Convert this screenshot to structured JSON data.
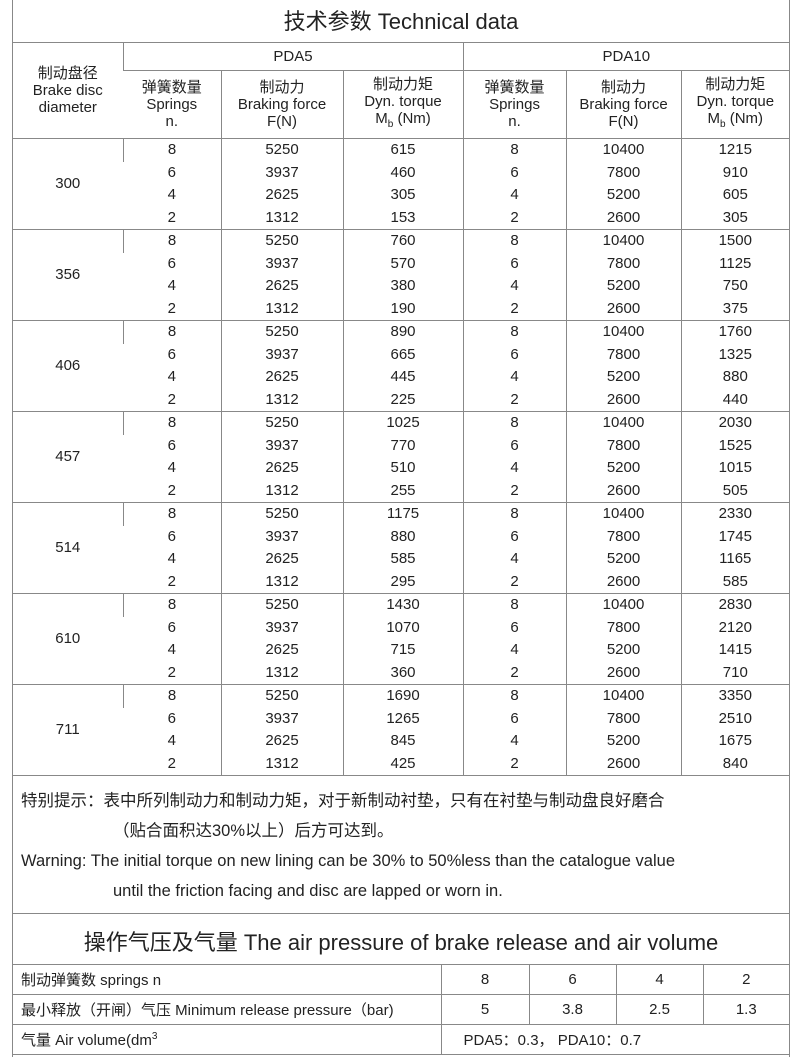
{
  "title": "技术参数   Technical data",
  "header": {
    "diameter": [
      "制动盘径",
      "Brake disc",
      "diameter"
    ],
    "models": [
      "PDA5",
      "PDA10"
    ],
    "springs": [
      "弹簧数量",
      "Springs",
      "n."
    ],
    "force": [
      "制动力",
      "Braking force",
      "F(N)"
    ],
    "torque": [
      "制动力矩",
      "Dyn. torque",
      "M",
      "b",
      " (Nm)"
    ]
  },
  "groups": [
    {
      "diameter": "300",
      "rows": [
        [
          "8",
          "5250",
          "615",
          "8",
          "10400",
          "1215"
        ],
        [
          "6",
          "3937",
          "460",
          "6",
          "7800",
          "910"
        ],
        [
          "4",
          "2625",
          "305",
          "4",
          "5200",
          "605"
        ],
        [
          "2",
          "1312",
          "153",
          "2",
          "2600",
          "305"
        ]
      ]
    },
    {
      "diameter": "356",
      "rows": [
        [
          "8",
          "5250",
          "760",
          "8",
          "10400",
          "1500"
        ],
        [
          "6",
          "3937",
          "570",
          "6",
          "7800",
          "1125"
        ],
        [
          "4",
          "2625",
          "380",
          "4",
          "5200",
          "750"
        ],
        [
          "2",
          "1312",
          "190",
          "2",
          "2600",
          "375"
        ]
      ]
    },
    {
      "diameter": "406",
      "rows": [
        [
          "8",
          "5250",
          "890",
          "8",
          "10400",
          "1760"
        ],
        [
          "6",
          "3937",
          "665",
          "6",
          "7800",
          "1325"
        ],
        [
          "4",
          "2625",
          "445",
          "4",
          "5200",
          "880"
        ],
        [
          "2",
          "1312",
          "225",
          "2",
          "2600",
          "440"
        ]
      ]
    },
    {
      "diameter": "457",
      "rows": [
        [
          "8",
          "5250",
          "1025",
          "8",
          "10400",
          "2030"
        ],
        [
          "6",
          "3937",
          "770",
          "6",
          "7800",
          "1525"
        ],
        [
          "4",
          "2625",
          "510",
          "4",
          "5200",
          "1015"
        ],
        [
          "2",
          "1312",
          "255",
          "2",
          "2600",
          "505"
        ]
      ]
    },
    {
      "diameter": "514",
      "rows": [
        [
          "8",
          "5250",
          "1175",
          "8",
          "10400",
          "2330"
        ],
        [
          "6",
          "3937",
          "880",
          "6",
          "7800",
          "1745"
        ],
        [
          "4",
          "2625",
          "585",
          "4",
          "5200",
          "1165"
        ],
        [
          "2",
          "1312",
          "295",
          "2",
          "2600",
          "585"
        ]
      ]
    },
    {
      "diameter": "610",
      "rows": [
        [
          "8",
          "5250",
          "1430",
          "8",
          "10400",
          "2830"
        ],
        [
          "6",
          "3937",
          "1070",
          "6",
          "7800",
          "2120"
        ],
        [
          "4",
          "2625",
          "715",
          "4",
          "5200",
          "1415"
        ],
        [
          "2",
          "1312",
          "360",
          "2",
          "2600",
          "710"
        ]
      ]
    },
    {
      "diameter": "711",
      "rows": [
        [
          "8",
          "5250",
          "1690",
          "8",
          "10400",
          "3350"
        ],
        [
          "6",
          "3937",
          "1265",
          "6",
          "7800",
          "2510"
        ],
        [
          "4",
          "2625",
          "845",
          "4",
          "5200",
          "1675"
        ],
        [
          "2",
          "1312",
          "425",
          "2",
          "2600",
          "840"
        ]
      ]
    }
  ],
  "notes": {
    "cn1": "特别提示：表中所列制动力和制动力矩，对于新制动衬垫，只有在衬垫与制动盘良好磨合",
    "cn2": "（贴合面积达30%以上）后方可达到。",
    "en1": "Warning: The initial torque on new lining can be 30% to 50%less than the catalogue value",
    "en2": "until the friction facing and disc are lapped or worn in."
  },
  "air": {
    "title": "操作气压及气量 The air pressure of brake release and air volume",
    "springs_label": "制动弹簧数  springs  n",
    "springs": [
      "8",
      "6",
      "4",
      "2"
    ],
    "pressure_label": "最小释放（开闸）气压 Minimum release pressure（bar)",
    "pressure": [
      "5",
      "3.8",
      "2.5",
      "1.3"
    ],
    "volume_label": "气量  Air volume(dm",
    "volume_sup": "3",
    "volume_value": "PDA5：0.3，   PDA10：0.7"
  }
}
